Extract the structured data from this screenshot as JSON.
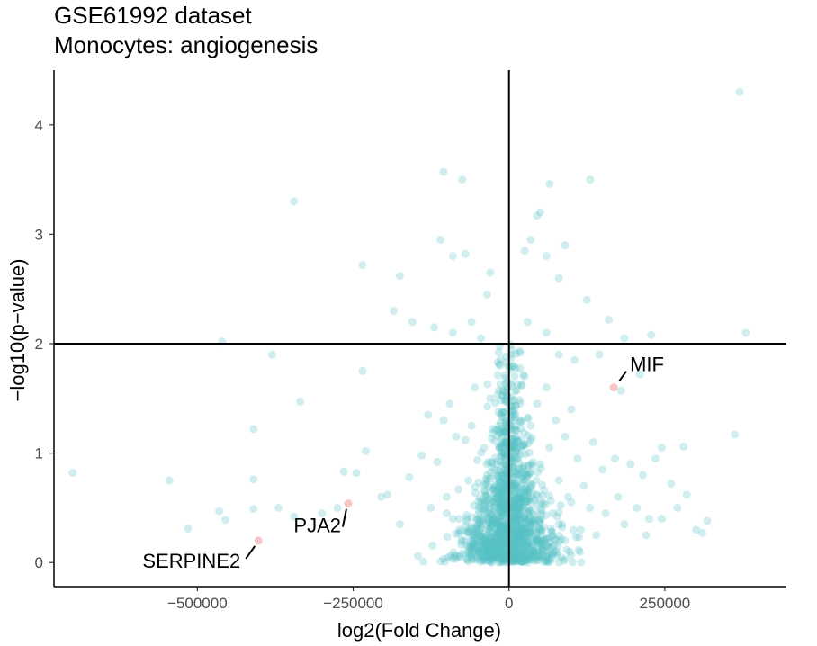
{
  "chart_data": {
    "type": "scatter",
    "title": "GSE61992 dataset",
    "subtitle": "Monocytes: angiogenesis",
    "xlabel": "log2(Fold Change)",
    "ylabel": "−log10(p−value)",
    "xlim": [
      -730000,
      445000
    ],
    "ylim": [
      -0.22,
      4.5
    ],
    "xticks": [
      -500000,
      -250000,
      0,
      250000
    ],
    "xtick_labels": [
      "−500000",
      "−250000",
      "0",
      "250000"
    ],
    "yticks": [
      0,
      1,
      2,
      3,
      4
    ],
    "ytick_labels": [
      "0",
      "1",
      "2",
      "3",
      "4"
    ],
    "hline": 2,
    "vline": 0,
    "grid": false,
    "colors": {
      "background": "#57c1c4",
      "highlight": "#f08080",
      "axis": "#000000"
    },
    "highlighted": [
      {
        "label": "MIF",
        "x": 168000,
        "y": 1.6
      },
      {
        "label": "PJA2",
        "x": -258000,
        "y": 0.54
      },
      {
        "label": "SERPINE2",
        "x": -402000,
        "y": 0.2
      }
    ],
    "points": [
      [
        370000,
        4.3
      ],
      [
        -345000,
        3.3
      ],
      [
        -105000,
        3.57
      ],
      [
        -75000,
        3.5
      ],
      [
        65000,
        3.46
      ],
      [
        130000,
        3.5
      ],
      [
        -235000,
        2.72
      ],
      [
        -175000,
        2.62
      ],
      [
        -110000,
        2.95
      ],
      [
        -90000,
        2.8
      ],
      [
        -70000,
        2.82
      ],
      [
        -30000,
        2.65
      ],
      [
        -35000,
        2.45
      ],
      [
        25000,
        2.85
      ],
      [
        35000,
        2.95
      ],
      [
        50000,
        3.2
      ],
      [
        45000,
        3.17
      ],
      [
        60000,
        2.8
      ],
      [
        90000,
        2.9
      ],
      [
        125000,
        2.4
      ],
      [
        80000,
        2.6
      ],
      [
        -460000,
        2.02
      ],
      [
        -380000,
        1.9
      ],
      [
        -235000,
        1.75
      ],
      [
        -185000,
        2.3
      ],
      [
        -155000,
        2.2
      ],
      [
        -120000,
        2.15
      ],
      [
        -90000,
        2.1
      ],
      [
        -60000,
        2.2
      ],
      [
        -45000,
        2.05
      ],
      [
        30000,
        2.2
      ],
      [
        60000,
        2.1
      ],
      [
        80000,
        1.9
      ],
      [
        105000,
        1.85
      ],
      [
        160000,
        2.22
      ],
      [
        185000,
        2.05
      ],
      [
        228000,
        2.08
      ],
      [
        380000,
        2.1
      ],
      [
        145000,
        1.9
      ],
      [
        210000,
        1.72
      ],
      [
        180000,
        1.57
      ],
      [
        -700000,
        0.82
      ],
      [
        -545000,
        0.75
      ],
      [
        -515000,
        0.31
      ],
      [
        -465000,
        0.47
      ],
      [
        -455000,
        0.39
      ],
      [
        -410000,
        1.22
      ],
      [
        -410000,
        0.76
      ],
      [
        -410000,
        0.49
      ],
      [
        -370000,
        0.5
      ],
      [
        -345000,
        0.42
      ],
      [
        -335000,
        1.47
      ],
      [
        -300000,
        0.45
      ],
      [
        -275000,
        0.5
      ],
      [
        -265000,
        0.83
      ],
      [
        -245000,
        0.82
      ],
      [
        -230000,
        1.02
      ],
      [
        -205000,
        0.6
      ],
      [
        -195000,
        0.62
      ],
      [
        -175000,
        0.35
      ],
      [
        -160000,
        0.78
      ],
      [
        -140000,
        0.98
      ],
      [
        -130000,
        1.35
      ],
      [
        -125000,
        0.5
      ],
      [
        -115000,
        0.92
      ],
      [
        -105000,
        1.3
      ],
      [
        -100000,
        0.6
      ],
      [
        -95000,
        1.45
      ],
      [
        -85000,
        1.15
      ],
      [
        -80000,
        0.4
      ],
      [
        -70000,
        1.12
      ],
      [
        -65000,
        0.75
      ],
      [
        -60000,
        1.25
      ],
      [
        -55000,
        1.6
      ],
      [
        -50000,
        0.25
      ],
      [
        -45000,
        0.55
      ],
      [
        -40000,
        1.05
      ],
      [
        -35000,
        0.8
      ],
      [
        -30000,
        1.5
      ],
      [
        -25000,
        0.35
      ],
      [
        -20000,
        0.9
      ],
      [
        -15000,
        1.8
      ],
      [
        -10000,
        0.5
      ],
      [
        -8000,
        1.2
      ],
      [
        -5000,
        0.3
      ],
      [
        -3000,
        1.6
      ],
      [
        0,
        0.7
      ],
      [
        3000,
        1.9
      ],
      [
        5000,
        0.4
      ],
      [
        8000,
        1.3
      ],
      [
        10000,
        0.6
      ],
      [
        15000,
        1.1
      ],
      [
        20000,
        0.3
      ],
      [
        25000,
        1.7
      ],
      [
        30000,
        0.8
      ],
      [
        35000,
        1.25
      ],
      [
        40000,
        0.5
      ],
      [
        45000,
        1.45
      ],
      [
        50000,
        0.9
      ],
      [
        55000,
        0.2
      ],
      [
        60000,
        1.6
      ],
      [
        65000,
        1.05
      ],
      [
        70000,
        0.45
      ],
      [
        75000,
        1.3
      ],
      [
        80000,
        0.75
      ],
      [
        85000,
        0.35
      ],
      [
        90000,
        1.15
      ],
      [
        95000,
        0.6
      ],
      [
        100000,
        1.4
      ],
      [
        110000,
        0.95
      ],
      [
        115000,
        0.3
      ],
      [
        120000,
        0.7
      ],
      [
        130000,
        0.5
      ],
      [
        135000,
        1.1
      ],
      [
        140000,
        0.25
      ],
      [
        150000,
        0.85
      ],
      [
        155000,
        0.45
      ],
      [
        170000,
        0.95
      ],
      [
        175000,
        0.6
      ],
      [
        185000,
        0.35
      ],
      [
        195000,
        0.9
      ],
      [
        205000,
        0.5
      ],
      [
        215000,
        0.8
      ],
      [
        225000,
        0.4
      ],
      [
        235000,
        0.95
      ],
      [
        245000,
        1.05
      ],
      [
        260000,
        0.72
      ],
      [
        270000,
        0.5
      ],
      [
        285000,
        0.62
      ],
      [
        300000,
        0.3
      ],
      [
        310000,
        0.27
      ],
      [
        318000,
        0.38
      ],
      [
        362000,
        1.17
      ],
      [
        280000,
        1.06
      ],
      [
        245000,
        0.4
      ],
      [
        220000,
        0.25
      ],
      [
        -20000,
        0.1
      ],
      [
        -10000,
        0.05
      ],
      [
        5000,
        0.02
      ],
      [
        15000,
        0.08
      ],
      [
        -30000,
        0.15
      ],
      [
        25000,
        0.12
      ],
      [
        -40000,
        0.05
      ],
      [
        40000,
        0.1
      ],
      [
        -50000,
        0.12
      ],
      [
        50000,
        0.05
      ],
      [
        -60000,
        0.08
      ],
      [
        60000,
        0.15
      ],
      [
        -70000,
        0.2
      ],
      [
        70000,
        0.25
      ],
      [
        -80000,
        0.3
      ],
      [
        80000,
        0.35
      ],
      [
        -90000,
        0.4
      ],
      [
        90000,
        0.2
      ],
      [
        -100000,
        0.45
      ],
      [
        100000,
        0.55
      ]
    ]
  }
}
